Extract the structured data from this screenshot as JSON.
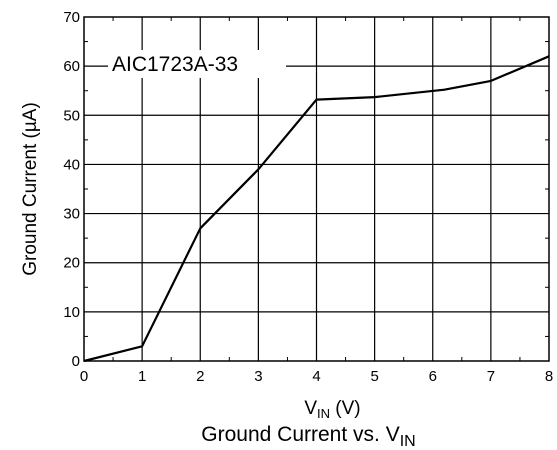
{
  "chart_data": {
    "type": "line",
    "title": "Ground Current vs. V",
    "title_subscript": "IN",
    "xlabel_main": "V",
    "xlabel_subscript": "IN",
    "xlabel_unit": " (V)",
    "ylabel": "Ground Current (µA)",
    "annotation": "AIC1723A-33",
    "xlim": [
      0,
      8
    ],
    "ylim": [
      0,
      70
    ],
    "x_ticks": [
      0,
      1,
      2,
      3,
      4,
      5,
      6,
      7,
      8
    ],
    "y_ticks": [
      0,
      10,
      20,
      30,
      40,
      50,
      60,
      70
    ],
    "grid": true,
    "series": [
      {
        "x": [
          0,
          1,
          2,
          3,
          4,
          5,
          6.2,
          7,
          8
        ],
        "y": [
          0,
          3,
          27,
          39,
          53.2,
          53.7,
          55.2,
          57,
          62
        ]
      }
    ]
  }
}
